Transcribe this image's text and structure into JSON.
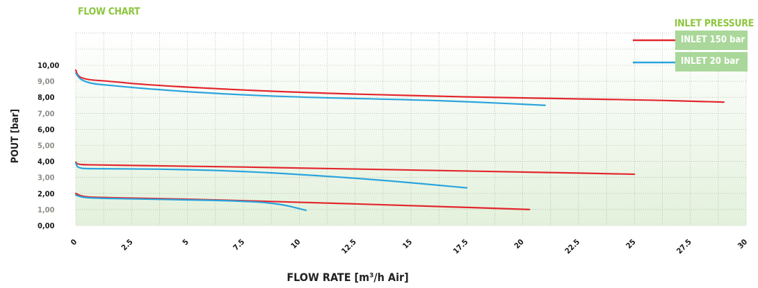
{
  "chart_data": {
    "type": "line",
    "title": "FLOW CHART",
    "xlabel": "FLOW RATE [m³/h Air]",
    "ylabel": "POUT [bar]",
    "xlim": [
      0,
      30
    ],
    "ylim": [
      0,
      10
    ],
    "x_ticks": [
      "0",
      "2.5",
      "5",
      "7.5",
      "10",
      "12.5",
      "15",
      "17.5",
      "20",
      "22.5",
      "25",
      "27.5",
      "30"
    ],
    "y_ticks": [
      "0,00",
      "1,00",
      "2,00",
      "3,00",
      "4,00",
      "5,00",
      "6,00",
      "7,00",
      "8,00",
      "9,00",
      "10,00"
    ],
    "grid": true,
    "legend_title": "INLET PRESSURE",
    "legend_position": "top-right",
    "series": [
      {
        "name": "INLET 150 bar",
        "color": "#e3262d",
        "setting": 10,
        "points": [
          [
            0,
            9.7
          ],
          [
            0.1,
            9.3
          ],
          [
            0.5,
            9.1
          ],
          [
            1.5,
            9.0
          ],
          [
            3,
            8.8
          ],
          [
            6,
            8.55
          ],
          [
            10,
            8.3
          ],
          [
            15,
            8.1
          ],
          [
            20,
            7.95
          ],
          [
            25,
            7.85
          ],
          [
            29,
            7.7
          ]
        ]
      },
      {
        "name": "INLET 20 bar",
        "color": "#2aa4dd",
        "setting": 10,
        "points": [
          [
            0,
            9.5
          ],
          [
            0.2,
            9.1
          ],
          [
            0.7,
            8.85
          ],
          [
            1.5,
            8.75
          ],
          [
            3,
            8.55
          ],
          [
            6,
            8.25
          ],
          [
            10,
            8.0
          ],
          [
            15,
            7.85
          ],
          [
            18,
            7.7
          ],
          [
            21,
            7.5
          ]
        ]
      },
      {
        "name": "INLET 150 bar",
        "color": "#e3262d",
        "setting": 4,
        "points": [
          [
            0,
            3.95
          ],
          [
            0.1,
            3.8
          ],
          [
            1,
            3.78
          ],
          [
            5,
            3.7
          ],
          [
            10,
            3.6
          ],
          [
            15,
            3.45
          ],
          [
            20,
            3.35
          ],
          [
            25,
            3.2
          ]
        ]
      },
      {
        "name": "INLET 20 bar",
        "color": "#2aa4dd",
        "setting": 4,
        "points": [
          [
            0,
            3.9
          ],
          [
            0.1,
            3.55
          ],
          [
            1,
            3.55
          ],
          [
            5,
            3.5
          ],
          [
            8,
            3.35
          ],
          [
            11,
            3.1
          ],
          [
            14,
            2.8
          ],
          [
            17.5,
            2.35
          ]
        ]
      },
      {
        "name": "INLET 150 bar",
        "color": "#e3262d",
        "setting": 2,
        "points": [
          [
            0,
            2.0
          ],
          [
            0.3,
            1.8
          ],
          [
            1,
            1.75
          ],
          [
            5,
            1.65
          ],
          [
            10,
            1.45
          ],
          [
            15,
            1.25
          ],
          [
            20.3,
            1.0
          ]
        ]
      },
      {
        "name": "INLET 20 bar",
        "color": "#2aa4dd",
        "setting": 2,
        "points": [
          [
            0,
            1.9
          ],
          [
            0.3,
            1.75
          ],
          [
            1,
            1.7
          ],
          [
            3,
            1.65
          ],
          [
            5,
            1.6
          ],
          [
            7,
            1.55
          ],
          [
            9,
            1.4
          ],
          [
            10.3,
            0.95
          ]
        ]
      }
    ],
    "legend_colors": {
      "INLET 150 bar": "#e3262d",
      "INLET 20 bar": "#2aa4dd"
    }
  }
}
